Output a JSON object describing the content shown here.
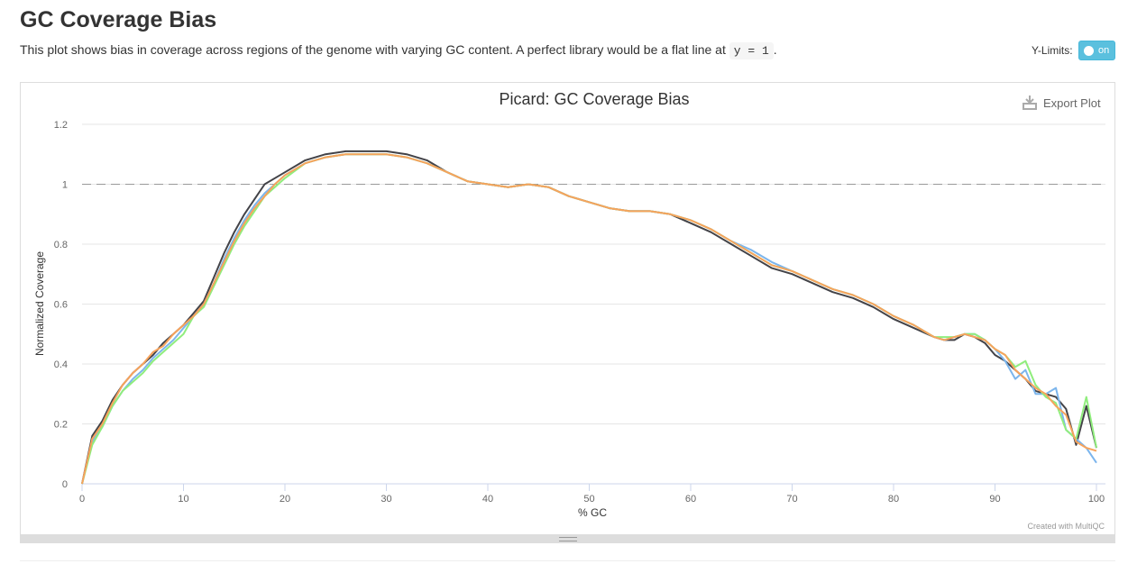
{
  "header": {
    "title": "GC Coverage Bias",
    "description_before": "This plot shows bias in coverage across regions of the genome with varying GC content. A perfect library would be a flat line at",
    "description_code": "y = 1",
    "description_after": ".",
    "ylimits_label": "Y-Limits:",
    "ylimits_toggle": "on"
  },
  "chart_data": {
    "type": "line",
    "title": "Picard: GC Coverage Bias",
    "export_label": "Export Plot",
    "credit": "Created with MultiQC",
    "xlabel": "% GC",
    "ylabel": "Normalized Coverage",
    "xlim": [
      0,
      100
    ],
    "xticks": [
      0,
      10,
      20,
      30,
      40,
      50,
      60,
      70,
      80,
      90,
      100
    ],
    "ylim": [
      0,
      1.2
    ],
    "yticks": [
      0,
      0.2,
      0.4,
      0.6,
      0.8,
      1,
      1.2
    ],
    "grid": true,
    "reference_line": 1,
    "x": [
      0,
      1,
      2,
      3,
      4,
      5,
      6,
      7,
      8,
      9,
      10,
      11,
      12,
      13,
      14,
      15,
      16,
      17,
      18,
      19,
      20,
      22,
      24,
      26,
      28,
      30,
      32,
      34,
      36,
      38,
      40,
      42,
      44,
      46,
      48,
      50,
      52,
      54,
      56,
      58,
      60,
      62,
      64,
      66,
      68,
      70,
      72,
      74,
      76,
      78,
      80,
      82,
      84,
      85,
      86,
      87,
      88,
      89,
      90,
      91,
      92,
      93,
      94,
      95,
      96,
      97,
      98,
      99,
      100
    ],
    "series": [
      {
        "color": "#434348",
        "values": [
          0,
          0.16,
          0.21,
          0.28,
          0.33,
          0.37,
          0.4,
          0.43,
          0.47,
          0.5,
          0.53,
          0.57,
          0.61,
          0.69,
          0.77,
          0.84,
          0.9,
          0.95,
          1.0,
          1.02,
          1.04,
          1.08,
          1.1,
          1.11,
          1.11,
          1.11,
          1.1,
          1.08,
          1.04,
          1.01,
          1.0,
          0.99,
          1.0,
          0.99,
          0.96,
          0.94,
          0.92,
          0.91,
          0.91,
          0.9,
          0.87,
          0.84,
          0.8,
          0.76,
          0.72,
          0.7,
          0.67,
          0.64,
          0.62,
          0.59,
          0.55,
          0.52,
          0.49,
          0.48,
          0.48,
          0.5,
          0.49,
          0.47,
          0.43,
          0.41,
          0.38,
          0.35,
          0.31,
          0.3,
          0.29,
          0.25,
          0.13,
          0.26,
          0.12
        ]
      },
      {
        "color": "#7cb5ec",
        "values": [
          0,
          0.14,
          0.19,
          0.26,
          0.31,
          0.35,
          0.38,
          0.42,
          0.45,
          0.48,
          0.52,
          0.56,
          0.6,
          0.67,
          0.75,
          0.82,
          0.88,
          0.93,
          0.97,
          1.0,
          1.03,
          1.07,
          1.09,
          1.1,
          1.1,
          1.1,
          1.09,
          1.07,
          1.04,
          1.01,
          1.0,
          0.99,
          1.0,
          0.99,
          0.96,
          0.94,
          0.92,
          0.91,
          0.91,
          0.9,
          0.88,
          0.85,
          0.81,
          0.78,
          0.74,
          0.71,
          0.68,
          0.65,
          0.63,
          0.6,
          0.56,
          0.53,
          0.49,
          0.48,
          0.49,
          0.5,
          0.5,
          0.48,
          0.45,
          0.41,
          0.35,
          0.38,
          0.3,
          0.3,
          0.32,
          0.18,
          0.15,
          0.12,
          0.07
        ]
      },
      {
        "color": "#90ed7d",
        "values": [
          0,
          0.13,
          0.19,
          0.26,
          0.31,
          0.34,
          0.37,
          0.41,
          0.44,
          0.47,
          0.5,
          0.56,
          0.59,
          0.66,
          0.73,
          0.8,
          0.86,
          0.91,
          0.96,
          0.99,
          1.02,
          1.07,
          1.09,
          1.1,
          1.1,
          1.1,
          1.09,
          1.07,
          1.04,
          1.01,
          1.0,
          0.99,
          1.0,
          0.99,
          0.96,
          0.94,
          0.92,
          0.91,
          0.91,
          0.9,
          0.88,
          0.85,
          0.81,
          0.77,
          0.73,
          0.71,
          0.68,
          0.65,
          0.63,
          0.6,
          0.56,
          0.53,
          0.49,
          0.49,
          0.49,
          0.5,
          0.5,
          0.48,
          0.45,
          0.43,
          0.39,
          0.41,
          0.33,
          0.29,
          0.27,
          0.18,
          0.15,
          0.29,
          0.12
        ]
      },
      {
        "color": "#f7a35c",
        "values": [
          0,
          0.15,
          0.2,
          0.27,
          0.33,
          0.37,
          0.4,
          0.44,
          0.46,
          0.5,
          0.53,
          0.56,
          0.6,
          0.67,
          0.74,
          0.81,
          0.87,
          0.92,
          0.96,
          1.0,
          1.03,
          1.07,
          1.09,
          1.1,
          1.1,
          1.1,
          1.09,
          1.07,
          1.04,
          1.01,
          1.0,
          0.99,
          1.0,
          0.99,
          0.96,
          0.94,
          0.92,
          0.91,
          0.91,
          0.9,
          0.88,
          0.85,
          0.81,
          0.77,
          0.73,
          0.71,
          0.68,
          0.65,
          0.63,
          0.6,
          0.56,
          0.53,
          0.49,
          0.48,
          0.49,
          0.5,
          0.49,
          0.48,
          0.45,
          0.43,
          0.38,
          0.35,
          0.32,
          0.3,
          0.26,
          0.23,
          0.14,
          0.12,
          0.11
        ]
      }
    ]
  }
}
